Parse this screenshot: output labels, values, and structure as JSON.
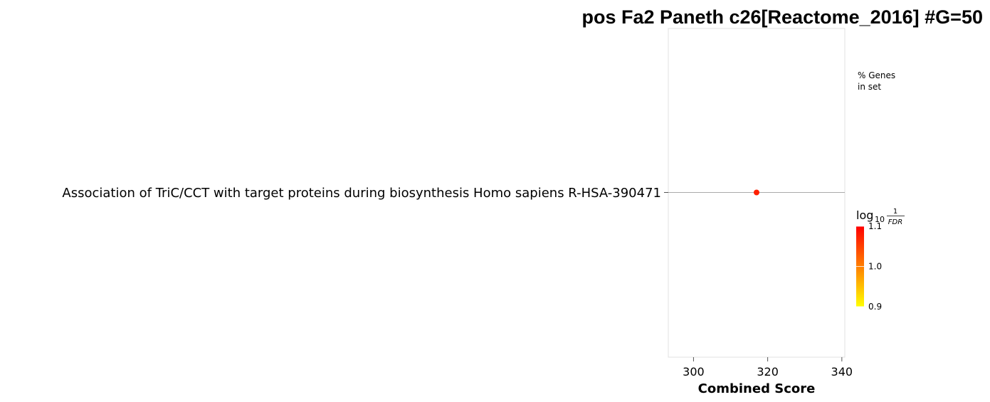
{
  "chart_data": {
    "type": "scatter",
    "title": "pos Fa2 Paneth c26[Reactome_2016] #G=50",
    "xlabel": "Combined Score",
    "ylabel": "",
    "xlim": [
      293.2,
      340.8
    ],
    "xticks": [
      "300",
      "320",
      "340"
    ],
    "grid": true,
    "categories": [
      "Association of TriC/CCT with target proteins during biosynthesis Homo sapiens R-HSA-390471"
    ],
    "points": [
      {
        "category": "Association of TriC/CCT with target proteins during biosynthesis Homo sapiens R-HSA-390471",
        "x": 317,
        "log10_inv_fdr": 1.1,
        "color": "#ff2000"
      }
    ],
    "size_legend": {
      "title_line1": "% Genes",
      "title_line2": "in set"
    },
    "colorbar": {
      "label_main": "log",
      "label_sub": "10",
      "label_num": "1",
      "label_den": "FDR",
      "ticks": [
        "1.1",
        "1.0",
        "0.9"
      ],
      "range": [
        0.9,
        1.1
      ],
      "color_low": "#ffff00",
      "color_high": "#ff0000"
    }
  }
}
